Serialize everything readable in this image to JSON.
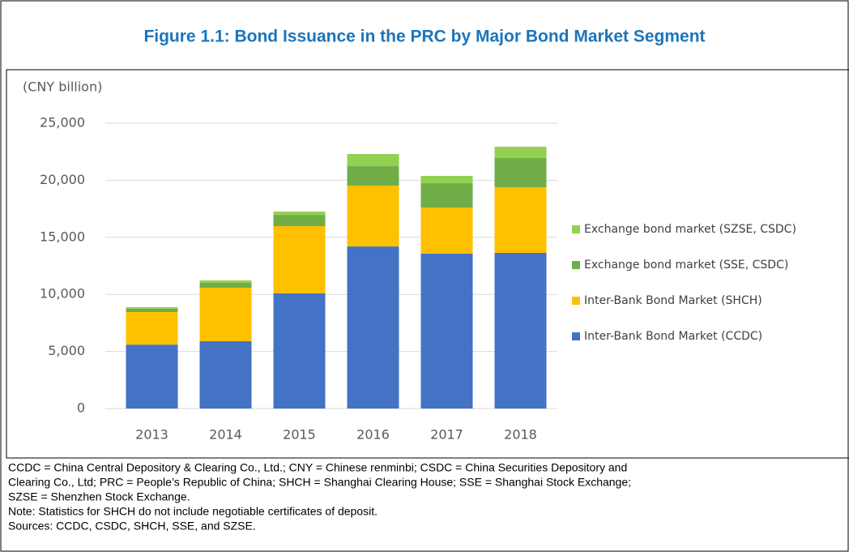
{
  "chart_data": {
    "type": "stacked_bar",
    "title": "Figure 1.1: Bond Issuance in the PRC by Major Bond Market Segment",
    "y_label": "(CNY billion)",
    "categories": [
      "2013",
      "2014",
      "2015",
      "2016",
      "2017",
      "2018"
    ],
    "series": [
      {
        "name": "Inter-Bank Bond Market (CCDC)",
        "color": "#4472c4",
        "values": [
          5600,
          5900,
          10090,
          14200,
          13570,
          13640
        ]
      },
      {
        "name": "Inter-Bank Bond Market (SHCH)",
        "color": "#ffc000",
        "values": [
          2850,
          4680,
          5890,
          5330,
          4040,
          5750
        ]
      },
      {
        "name": "Exchange bond market (SSE, CSDC)",
        "color": "#70ad47",
        "values": [
          290,
          430,
          990,
          1710,
          2130,
          2560
        ]
      },
      {
        "name": "Exchange bond market (SZSE, CSDC)",
        "color": "#92d050",
        "values": [
          140,
          210,
          290,
          1060,
          640,
          990
        ]
      }
    ],
    "ylim": [
      0,
      25000
    ],
    "yticks": [
      0,
      {
        "value": 5000,
        "label": "5,000"
      },
      {
        "value": 10000,
        "label": "10,000"
      },
      {
        "value": 15000,
        "label": "15,000"
      },
      {
        "value": 20000,
        "label": "20,000"
      },
      {
        "value": 25000,
        "label": "25,000"
      }
    ],
    "grid": true,
    "legend": "right",
    "notes": [
      "CCDC = China Central Depository & Clearing Co., Ltd.; CNY = Chinese renminbi; CSDC = China Securities Depository and",
      "Clearing Co., Ltd; PRC = People’s Republic of China; SHCH = Shanghai Clearing House; SSE = Shanghai Stock Exchange;",
      "SZSE = Shenzhen Stock Exchange.",
      "Note: Statistics for SHCH do not include negotiable certificates of deposit.",
      "Sources: CCDC, CSDC, SHCH, SSE, and SZSE."
    ]
  }
}
